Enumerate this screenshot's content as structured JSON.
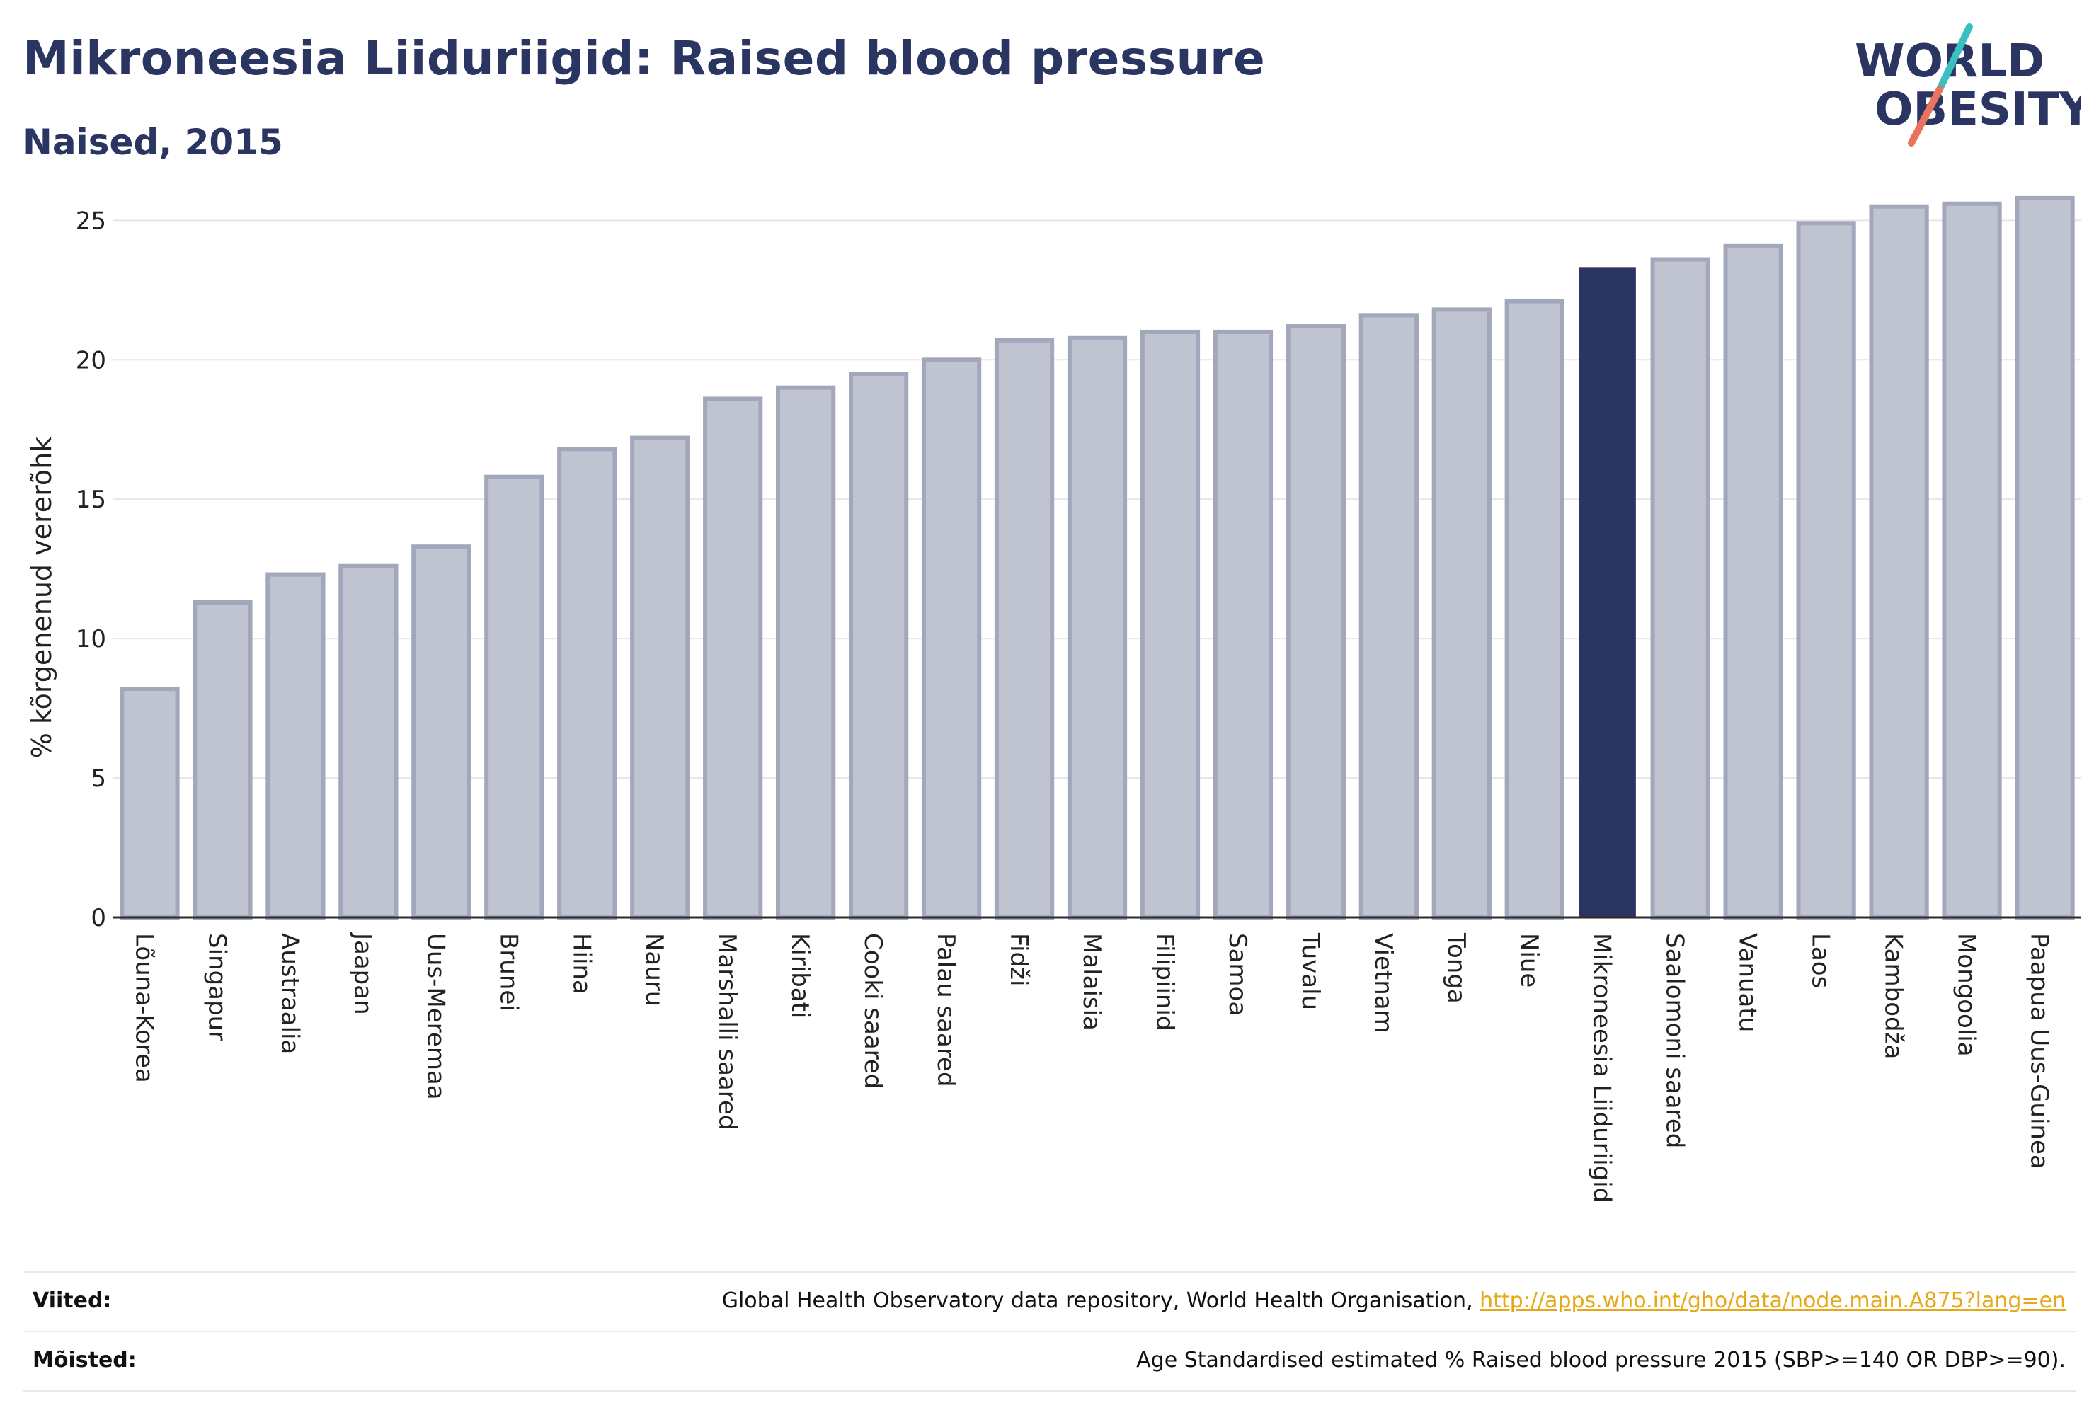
{
  "header": {
    "title": "Mikroneesia Liiduriigid: Raised blood pressure",
    "subtitle": "Naised, 2015"
  },
  "logo": {
    "line1": "WORLD",
    "line2": "OBESITY",
    "colors": {
      "text": "#2b3561",
      "slash_teal": "#3bbfc1",
      "slash_coral": "#e8735e"
    }
  },
  "colors": {
    "bar_fill": "#c0c3d0",
    "bar_stroke": "#a2a7bb",
    "highlight": "#2b3561",
    "grid": "#e6e6ea",
    "axis": "#2b2b2b"
  },
  "chart_data": {
    "type": "bar",
    "ylabel": "% kõrgenenud vererõhk",
    "xlabel": "",
    "ylim": [
      0,
      26
    ],
    "yticks": [
      0,
      5,
      10,
      15,
      20,
      25
    ],
    "grid": true,
    "highlight": "Mikroneesia Liiduriigid",
    "categories": [
      "Lõuna-Korea",
      "Singapur",
      "Austraalia",
      "Jaapan",
      "Uus-Meremaa",
      "Brunei",
      "Hiina",
      "Nauru",
      "Marshalli saared",
      "Kiribati",
      "Cooki saared",
      "Palau saared",
      "Fidži",
      "Malaisia",
      "Filipiinid",
      "Samoa",
      "Tuvalu",
      "Vietnam",
      "Tonga",
      "Niue",
      "Mikroneesia Liiduriigid",
      "Saalomoni saared",
      "Vanuatu",
      "Laos",
      "Kambodža",
      "Mongoolia",
      "Paapua Uus-Guinea"
    ],
    "values": [
      8.2,
      11.3,
      12.3,
      12.6,
      13.3,
      15.8,
      16.8,
      17.2,
      18.6,
      19.0,
      19.5,
      20.0,
      20.7,
      20.8,
      21.0,
      21.0,
      21.2,
      21.6,
      21.8,
      22.1,
      23.3,
      23.6,
      24.1,
      24.9,
      25.5,
      25.6,
      25.8
    ]
  },
  "footer": {
    "sources_label": "Viited:",
    "sources_text": "Global Health Observatory data repository, World Health Organisation, ",
    "sources_link": "http://apps.who.int/gho/data/node.main.A875?lang=en",
    "definitions_label": "Mõisted:",
    "definitions_text": "Age Standardised estimated % Raised blood pressure 2015 (SBP>=140 OR DBP>=90)."
  }
}
